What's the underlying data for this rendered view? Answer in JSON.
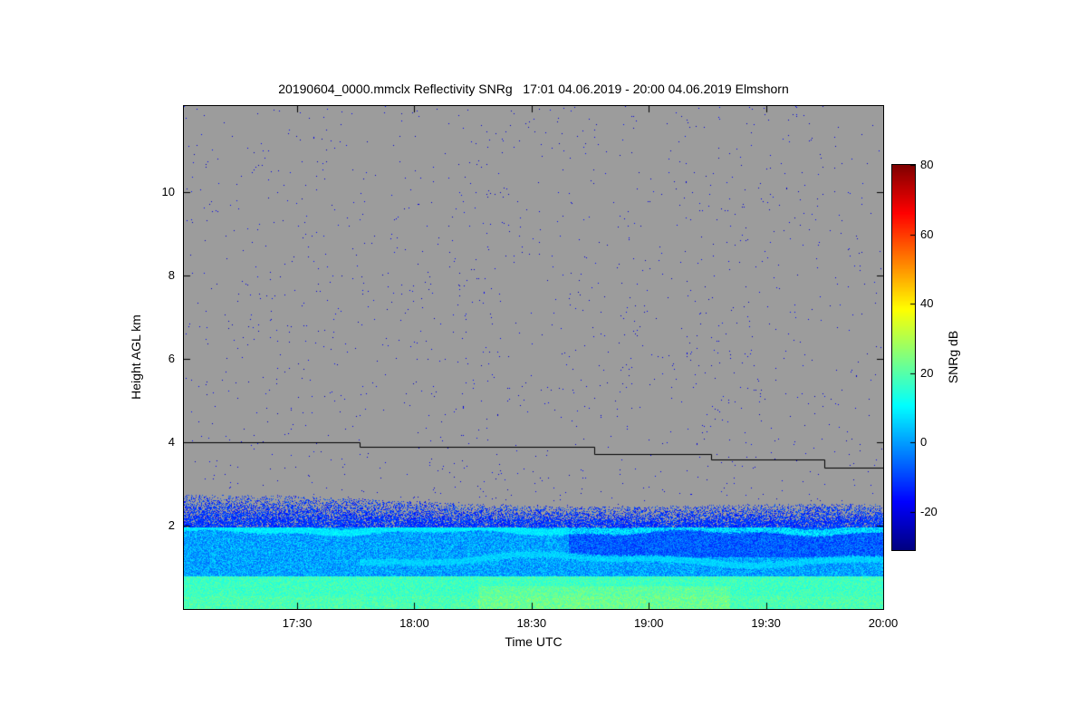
{
  "chart_data": {
    "type": "heatmap",
    "title": "20190604_0000.mmclx Reflectivity SNRg   17:01 04.06.2019 - 20:00 04.06.2019 Elmshorn",
    "xlabel": "Time UTC",
    "ylabel": "Height AGL km",
    "x_range_minutes": [
      1021,
      1200
    ],
    "x_ticks": [
      {
        "label": "17:30",
        "minute": 1050
      },
      {
        "label": "18:00",
        "minute": 1080
      },
      {
        "label": "18:30",
        "minute": 1110
      },
      {
        "label": "19:00",
        "minute": 1140
      },
      {
        "label": "19:30",
        "minute": 1170
      },
      {
        "label": "20:00",
        "minute": 1200
      }
    ],
    "y_range_km": [
      0,
      12.07
    ],
    "y_ticks": [
      2,
      4,
      6,
      8,
      10
    ],
    "colormap": "jet",
    "value_range_db": [
      -31,
      80
    ],
    "no_data_color": "#9c9c9c",
    "colorbar": {
      "label": "SNRg dB",
      "ticks": [
        80,
        60,
        40,
        20,
        0,
        -20
      ]
    },
    "range_line": {
      "color": "#000000",
      "steps_min_km": [
        [
          1021,
          4.0
        ],
        [
          1066,
          3.9
        ],
        [
          1126,
          3.72
        ],
        [
          1156,
          3.59
        ],
        [
          1185,
          3.4
        ]
      ],
      "end_minute": 1200
    },
    "echo_layers": [
      {
        "name": "surface-band",
        "km_min": 0,
        "km_max": 0.78,
        "db_base": 13,
        "db_var": 9,
        "description": "continuous green echo band near the surface"
      },
      {
        "name": "mixed-band",
        "km_min": 0.78,
        "km_max": 1.95,
        "db_base": -7,
        "db_var": 15,
        "description": "mottled blue/cyan echoes"
      },
      {
        "name": "bright-layer",
        "km_center": 1.9,
        "km_thickness": 0.12,
        "db_base": 5,
        "db_var": 7,
        "description": "thin bright cyan layer near 1.9-2.0 km"
      },
      {
        "name": "speckle-band",
        "km_min": 1.95,
        "km_max": 2.68,
        "db_base": -17,
        "db_var": 11,
        "description": "dense blue noise speckle above bright layer"
      },
      {
        "name": "clear-air",
        "km_min": 2.68,
        "km_max": 12.07,
        "db_base": -24,
        "db_var": 9,
        "density": 0.004,
        "description": "sparse noise specks over gray no-signal background"
      }
    ]
  }
}
